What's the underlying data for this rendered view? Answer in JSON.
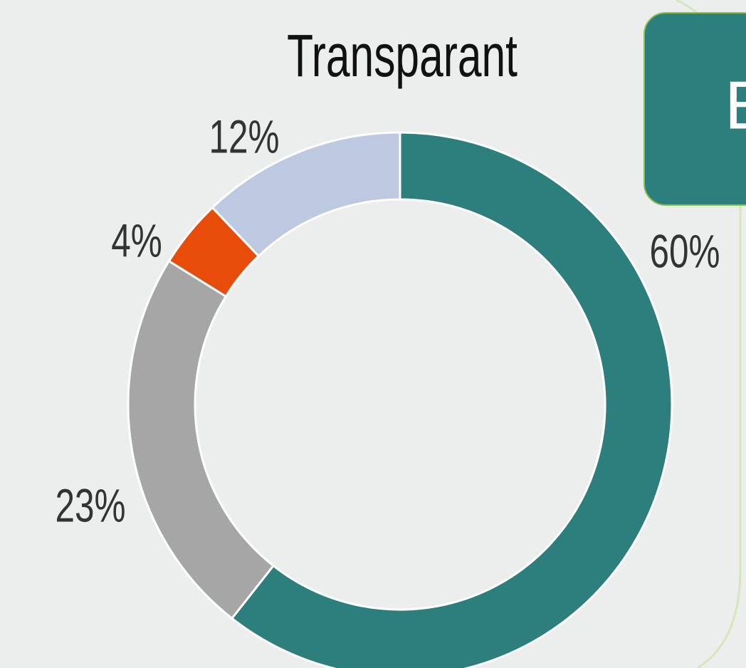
{
  "chart_data": {
    "type": "donut",
    "title": "Transparant",
    "values": [
      60,
      23,
      4,
      12
    ],
    "value_labels": [
      "60%",
      "23%",
      "4%",
      "12%"
    ],
    "colors": [
      "#2c7f7c",
      "#a6a6a6",
      "#e84c0a",
      "#bdc9e1"
    ]
  },
  "callout": {
    "text": "E"
  }
}
